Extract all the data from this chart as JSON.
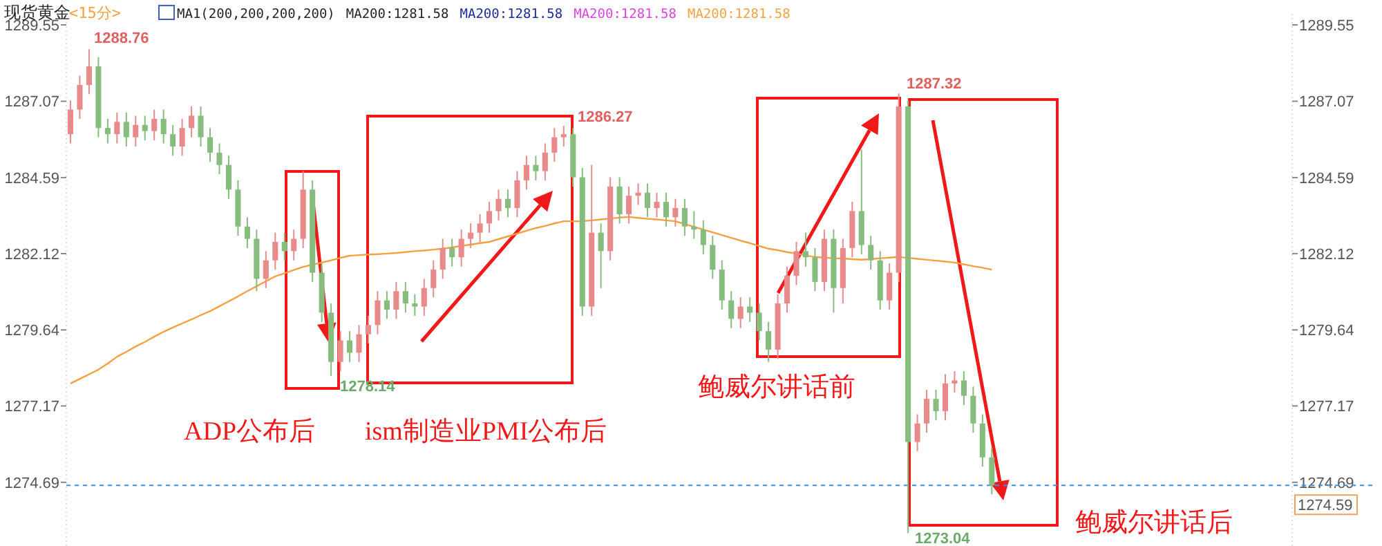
{
  "chart_data": {
    "type": "candlestick",
    "title": "现货黄金",
    "subtitle": "<15分>",
    "categories": [
      null,
      null,
      null,
      null,
      null,
      null,
      null,
      null,
      null,
      null,
      null,
      null,
      null,
      null,
      null,
      null,
      null,
      null,
      null,
      null,
      null,
      null,
      null,
      null,
      null,
      null,
      null,
      null,
      null,
      null,
      null,
      null,
      null,
      null,
      null,
      null,
      null,
      null,
      null,
      null,
      null,
      null,
      null,
      null,
      null,
      null,
      null,
      null,
      null,
      null,
      null,
      null,
      null,
      null,
      null,
      null,
      null,
      null,
      null,
      null,
      null,
      null,
      null,
      null,
      null,
      null,
      null,
      null,
      null,
      null,
      null,
      null,
      null,
      null,
      null,
      null,
      null,
      null,
      null,
      null,
      null,
      null,
      null,
      null,
      null,
      null,
      null,
      null,
      null,
      null,
      null,
      null,
      null,
      null,
      null,
      null,
      null,
      null,
      null,
      null
    ],
    "ohlc": [
      [
        1286.0,
        1287.1,
        1285.7,
        1286.8
      ],
      [
        1286.8,
        1287.9,
        1286.5,
        1287.6
      ],
      [
        1287.6,
        1288.76,
        1287.3,
        1288.2
      ],
      [
        1288.2,
        1288.5,
        1285.9,
        1286.2
      ],
      [
        1286.2,
        1286.5,
        1285.7,
        1286.0
      ],
      [
        1286.0,
        1286.7,
        1285.7,
        1286.4
      ],
      [
        1286.4,
        1286.7,
        1285.6,
        1285.9
      ],
      [
        1285.9,
        1286.6,
        1285.6,
        1286.3
      ],
      [
        1286.3,
        1286.6,
        1285.8,
        1286.1
      ],
      [
        1286.1,
        1286.8,
        1285.8,
        1286.5
      ],
      [
        1286.5,
        1286.8,
        1285.7,
        1286.0
      ],
      [
        1286.0,
        1286.3,
        1285.3,
        1285.6
      ],
      [
        1285.6,
        1286.5,
        1285.3,
        1286.2
      ],
      [
        1286.2,
        1286.9,
        1285.9,
        1286.6
      ],
      [
        1286.6,
        1286.9,
        1285.6,
        1285.9
      ],
      [
        1285.9,
        1286.2,
        1285.1,
        1285.4
      ],
      [
        1285.4,
        1285.7,
        1284.7,
        1285.0
      ],
      [
        1285.0,
        1285.3,
        1283.9,
        1284.2
      ],
      [
        1284.2,
        1284.5,
        1282.7,
        1283.0
      ],
      [
        1283.0,
        1283.3,
        1282.3,
        1282.6
      ],
      [
        1282.6,
        1282.9,
        1280.9,
        1281.3
      ],
      [
        1281.3,
        1282.2,
        1281.0,
        1281.9
      ],
      [
        1281.9,
        1282.8,
        1281.6,
        1282.5
      ],
      [
        1282.5,
        1282.8,
        1281.9,
        1282.2
      ],
      [
        1282.2,
        1282.9,
        1281.9,
        1282.6
      ],
      [
        1282.6,
        1284.8,
        1282.3,
        1284.2
      ],
      [
        1284.2,
        1284.5,
        1281.2,
        1281.5
      ],
      [
        1281.5,
        1281.8,
        1279.9,
        1280.2
      ],
      [
        1280.2,
        1280.5,
        1278.14,
        1278.6
      ],
      [
        1278.6,
        1279.6,
        1278.3,
        1279.3
      ],
      [
        1279.3,
        1279.6,
        1278.6,
        1278.9
      ],
      [
        1278.9,
        1279.8,
        1278.6,
        1279.5
      ],
      [
        1279.5,
        1280.1,
        1279.2,
        1279.8
      ],
      [
        1279.8,
        1280.9,
        1279.5,
        1280.6
      ],
      [
        1280.6,
        1280.9,
        1280.0,
        1280.3
      ],
      [
        1280.3,
        1281.2,
        1280.0,
        1280.9
      ],
      [
        1280.9,
        1281.2,
        1280.2,
        1280.5
      ],
      [
        1280.5,
        1280.8,
        1280.1,
        1280.4
      ],
      [
        1280.4,
        1281.3,
        1280.1,
        1281.0
      ],
      [
        1281.0,
        1281.9,
        1280.7,
        1281.6
      ],
      [
        1281.6,
        1282.6,
        1281.3,
        1282.3
      ],
      [
        1282.3,
        1282.6,
        1281.7,
        1282.0
      ],
      [
        1282.0,
        1282.9,
        1281.7,
        1282.6
      ],
      [
        1282.6,
        1283.1,
        1282.3,
        1282.8
      ],
      [
        1282.8,
        1283.4,
        1282.5,
        1283.1
      ],
      [
        1283.1,
        1283.8,
        1282.8,
        1283.5
      ],
      [
        1283.5,
        1284.2,
        1283.2,
        1283.9
      ],
      [
        1283.9,
        1284.2,
        1283.3,
        1283.6
      ],
      [
        1283.6,
        1284.8,
        1283.3,
        1284.5
      ],
      [
        1284.5,
        1285.3,
        1284.2,
        1285.0
      ],
      [
        1285.0,
        1285.3,
        1284.5,
        1284.8
      ],
      [
        1284.8,
        1285.7,
        1284.5,
        1285.4
      ],
      [
        1285.4,
        1286.2,
        1285.1,
        1285.9
      ],
      [
        1285.9,
        1286.27,
        1285.6,
        1286.0
      ],
      [
        1286.0,
        1286.2,
        1284.3,
        1284.6
      ],
      [
        1284.6,
        1284.9,
        1280.1,
        1280.4
      ],
      [
        1280.4,
        1285.0,
        1280.1,
        1282.8
      ],
      [
        1282.8,
        1283.1,
        1281.0,
        1282.2
      ],
      [
        1282.2,
        1284.6,
        1281.9,
        1284.3
      ],
      [
        1284.3,
        1284.6,
        1283.1,
        1283.4
      ],
      [
        1283.4,
        1284.3,
        1283.1,
        1284.0
      ],
      [
        1284.0,
        1284.4,
        1283.7,
        1284.1
      ],
      [
        1284.1,
        1284.4,
        1283.3,
        1283.6
      ],
      [
        1283.6,
        1284.1,
        1283.3,
        1283.8
      ],
      [
        1283.8,
        1284.1,
        1283.0,
        1283.3
      ],
      [
        1283.3,
        1283.9,
        1283.0,
        1283.6
      ],
      [
        1283.6,
        1283.9,
        1282.7,
        1283.0
      ],
      [
        1283.0,
        1283.5,
        1282.6,
        1282.9
      ],
      [
        1282.9,
        1283.2,
        1282.1,
        1282.4
      ],
      [
        1282.4,
        1282.7,
        1281.3,
        1281.6
      ],
      [
        1281.6,
        1281.9,
        1280.3,
        1280.6
      ],
      [
        1280.6,
        1280.9,
        1279.7,
        1280.0
      ],
      [
        1280.0,
        1280.7,
        1279.7,
        1280.4
      ],
      [
        1280.4,
        1280.7,
        1279.9,
        1280.2
      ],
      [
        1280.2,
        1280.5,
        1279.3,
        1279.6
      ],
      [
        1279.6,
        1279.9,
        1278.6,
        1279.0
      ],
      [
        1279.0,
        1280.8,
        1278.7,
        1280.5
      ],
      [
        1280.5,
        1281.7,
        1280.2,
        1281.4
      ],
      [
        1281.4,
        1282.5,
        1281.1,
        1282.2
      ],
      [
        1282.2,
        1282.8,
        1281.7,
        1282.0
      ],
      [
        1282.0,
        1282.3,
        1280.9,
        1281.2
      ],
      [
        1281.2,
        1282.9,
        1280.9,
        1282.6
      ],
      [
        1282.6,
        1282.9,
        1280.2,
        1281.0
      ],
      [
        1281.0,
        1282.6,
        1280.5,
        1282.3
      ],
      [
        1282.3,
        1283.8,
        1282.0,
        1283.5
      ],
      [
        1283.5,
        1285.5,
        1282.1,
        1282.4
      ],
      [
        1282.4,
        1282.7,
        1281.6,
        1281.9
      ],
      [
        1281.9,
        1282.2,
        1280.3,
        1280.6
      ],
      [
        1280.6,
        1281.8,
        1280.3,
        1281.5
      ],
      [
        1281.5,
        1287.32,
        1281.2,
        1286.9
      ],
      [
        1286.9,
        1287.1,
        1273.04,
        1276.0
      ],
      [
        1276.0,
        1276.9,
        1275.7,
        1276.6
      ],
      [
        1276.6,
        1277.7,
        1276.3,
        1277.4
      ],
      [
        1277.4,
        1277.7,
        1276.7,
        1277.0
      ],
      [
        1277.0,
        1278.2,
        1276.7,
        1277.9
      ],
      [
        1277.9,
        1278.3,
        1277.6,
        1278.0
      ],
      [
        1278.0,
        1278.3,
        1277.2,
        1277.5
      ],
      [
        1277.5,
        1277.8,
        1276.3,
        1276.6
      ],
      [
        1276.6,
        1276.9,
        1275.2,
        1275.5
      ],
      [
        1275.5,
        1275.8,
        1274.3,
        1274.59
      ]
    ],
    "colors": [
      "#e88a8a",
      "#e88a8a",
      "#e88a8a",
      "#86bd7e",
      "#86bd7e",
      "#e88a8a",
      "#86bd7e",
      "#e88a8a",
      "#86bd7e",
      "#e88a8a",
      "#86bd7e",
      "#86bd7e",
      "#e88a8a",
      "#e88a8a",
      "#86bd7e",
      "#86bd7e",
      "#86bd7e",
      "#86bd7e",
      "#86bd7e",
      "#86bd7e",
      "#86bd7e",
      "#e88a8a",
      "#e88a8a",
      "#86bd7e",
      "#e88a8a",
      "#e88a8a",
      "#86bd7e",
      "#86bd7e",
      "#86bd7e",
      "#e88a8a",
      "#86bd7e",
      "#e88a8a",
      "#e88a8a",
      "#e88a8a",
      "#86bd7e",
      "#e88a8a",
      "#86bd7e",
      "#86bd7e",
      "#e88a8a",
      "#e88a8a",
      "#e88a8a",
      "#86bd7e",
      "#e88a8a",
      "#e88a8a",
      "#e88a8a",
      "#e88a8a",
      "#e88a8a",
      "#86bd7e",
      "#e88a8a",
      "#e88a8a",
      "#86bd7e",
      "#e88a8a",
      "#e88a8a",
      "#e88a8a",
      "#86bd7e",
      "#86bd7e",
      "#e88a8a",
      "#86bd7e",
      "#e88a8a",
      "#86bd7e",
      "#e88a8a",
      "#e88a8a",
      "#86bd7e",
      "#e88a8a",
      "#86bd7e",
      "#e88a8a",
      "#86bd7e",
      "#86bd7e",
      "#86bd7e",
      "#86bd7e",
      "#86bd7e",
      "#86bd7e",
      "#e88a8a",
      "#86bd7e",
      "#86bd7e",
      "#86bd7e",
      "#e88a8a",
      "#e88a8a",
      "#e88a8a",
      "#86bd7e",
      "#86bd7e",
      "#e88a8a",
      "#86bd7e",
      "#e88a8a",
      "#e88a8a",
      "#86bd7e",
      "#86bd7e",
      "#86bd7e",
      "#e88a8a",
      "#e88a8a",
      "#86bd7e",
      "#e88a8a",
      "#e88a8a",
      "#86bd7e",
      "#e88a8a",
      "#e88a8a",
      "#86bd7e",
      "#86bd7e",
      "#86bd7e",
      "#86bd7e"
    ],
    "series": [
      {
        "type": "line",
        "color": "#f5a040",
        "values": [
          1277.9,
          1278.05,
          1278.2,
          1278.35,
          1278.55,
          1278.77,
          1278.93,
          1279.1,
          1279.25,
          1279.42,
          1279.58,
          1279.72,
          1279.85,
          1279.98,
          1280.12,
          1280.25,
          1280.41,
          1280.57,
          1280.73,
          1280.9,
          1281.06,
          1281.22,
          1281.38,
          1281.48,
          1281.59,
          1281.69,
          1281.76,
          1281.83,
          1281.9,
          1281.98,
          1282.05,
          1282.07,
          1282.09,
          1282.1,
          1282.12,
          1282.14,
          1282.17,
          1282.2,
          1282.22,
          1282.25,
          1282.28,
          1282.32,
          1282.37,
          1282.41,
          1282.46,
          1282.5,
          1282.59,
          1282.68,
          1282.77,
          1282.86,
          1282.95,
          1283.02,
          1283.1,
          1283.17,
          1283.17,
          1283.17,
          1283.2,
          1283.23,
          1283.26,
          1283.29,
          1283.31,
          1283.28,
          1283.25,
          1283.23,
          1283.2,
          1283.17,
          1283.08,
          1282.99,
          1282.9,
          1282.81,
          1282.72,
          1282.63,
          1282.54,
          1282.46,
          1282.37,
          1282.28,
          1282.23,
          1282.17,
          1282.12,
          1282.06,
          1282.01,
          1281.99,
          1281.97,
          1281.96,
          1281.94,
          1281.92,
          1281.94,
          1281.97,
          1281.99,
          1282.01,
          1281.98,
          1281.95,
          1281.92,
          1281.89,
          1281.86,
          1281.83,
          1281.77,
          1281.71,
          1281.66,
          1281.6
        ]
      }
    ],
    "ylim": [
      1272.62,
      1289.91
    ],
    "yticks": [
      1274.69,
      1277.17,
      1279.64,
      1282.12,
      1284.59,
      1287.07,
      1289.55
    ],
    "y2lim": [
      1272.62,
      1289.91
    ],
    "y2ticks": [
      1274.69,
      1277.17,
      1279.64,
      1282.12,
      1284.59,
      1287.07,
      1289.55
    ],
    "ref_lines": [
      {
        "axis": "y2",
        "value": 1274.59,
        "label": "1274.59",
        "color": "#3a8ee6",
        "line_style": "dashed"
      }
    ],
    "annotations": [
      "MA1(200,200,200,200)",
      "MA200:1281.58",
      "MA200:1281.58",
      "MA200:1281.58",
      "MA200:1281.58",
      "ADP公布后",
      "ism制造业PMI公布后",
      "鲍威尔讲话前",
      "鲍威尔讲话后",
      "1288.76",
      "1278.14",
      "1286.27",
      "1287.32",
      "1273.04"
    ]
  }
}
